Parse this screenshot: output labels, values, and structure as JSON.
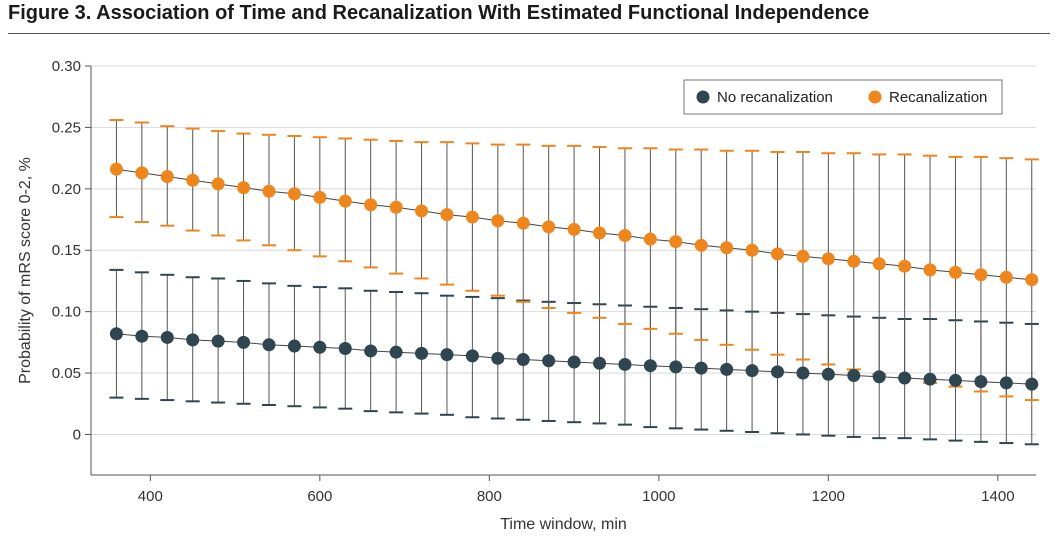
{
  "figure": {
    "title": "Figure 3. Association of Time and Recanalization With Estimated Functional Independence"
  },
  "chart_data": {
    "type": "scatter",
    "xlabel": "Time window, min",
    "ylabel": "Probability of mRS score 0-2, %",
    "xlim": [
      330,
      1445
    ],
    "ylim": [
      -0.033,
      0.3
    ],
    "x_ticks": [
      400,
      600,
      800,
      1000,
      1200,
      1400
    ],
    "x_tick_labels": [
      "400",
      "600",
      "800",
      "1000",
      "1200",
      "1400"
    ],
    "y_ticks": [
      0,
      0.05,
      0.1,
      0.15,
      0.2,
      0.25,
      0.3
    ],
    "y_tick_labels": [
      "0",
      "0.05",
      "0.10",
      "0.15",
      "0.20",
      "0.25",
      "0.30"
    ],
    "grid": "horizontal",
    "legend_position": "top-right",
    "x": [
      360,
      390,
      420,
      450,
      480,
      510,
      540,
      570,
      600,
      630,
      660,
      690,
      720,
      750,
      780,
      810,
      840,
      870,
      900,
      930,
      960,
      990,
      1020,
      1050,
      1080,
      1110,
      1140,
      1170,
      1200,
      1230,
      1260,
      1290,
      1320,
      1350,
      1380,
      1410,
      1440
    ],
    "series": [
      {
        "name": "No recanalization",
        "color": "#2f4550",
        "values": [
          0.082,
          0.08,
          0.079,
          0.077,
          0.076,
          0.075,
          0.073,
          0.072,
          0.071,
          0.07,
          0.068,
          0.067,
          0.066,
          0.065,
          0.064,
          0.062,
          0.061,
          0.06,
          0.059,
          0.058,
          0.057,
          0.056,
          0.055,
          0.054,
          0.053,
          0.052,
          0.051,
          0.05,
          0.049,
          0.048,
          0.047,
          0.046,
          0.045,
          0.044,
          0.043,
          0.042,
          0.041
        ],
        "lower": [
          0.03,
          0.029,
          0.028,
          0.027,
          0.026,
          0.025,
          0.024,
          0.023,
          0.022,
          0.021,
          0.019,
          0.018,
          0.017,
          0.016,
          0.014,
          0.013,
          0.012,
          0.011,
          0.01,
          0.009,
          0.008,
          0.006,
          0.005,
          0.004,
          0.003,
          0.002,
          0.001,
          0.0,
          -0.001,
          -0.002,
          -0.003,
          -0.003,
          -0.004,
          -0.005,
          -0.006,
          -0.007,
          -0.008
        ],
        "upper": [
          0.134,
          0.132,
          0.13,
          0.128,
          0.127,
          0.125,
          0.123,
          0.121,
          0.12,
          0.119,
          0.117,
          0.116,
          0.115,
          0.113,
          0.112,
          0.111,
          0.109,
          0.108,
          0.107,
          0.106,
          0.105,
          0.104,
          0.103,
          0.102,
          0.101,
          0.1,
          0.099,
          0.098,
          0.097,
          0.096,
          0.095,
          0.094,
          0.094,
          0.093,
          0.092,
          0.091,
          0.09
        ]
      },
      {
        "name": "Recanalization",
        "color": "#f08519",
        "values": [
          0.216,
          0.213,
          0.21,
          0.207,
          0.204,
          0.201,
          0.198,
          0.196,
          0.193,
          0.19,
          0.187,
          0.185,
          0.182,
          0.179,
          0.177,
          0.174,
          0.172,
          0.169,
          0.167,
          0.164,
          0.162,
          0.159,
          0.157,
          0.154,
          0.152,
          0.15,
          0.147,
          0.145,
          0.143,
          0.141,
          0.139,
          0.137,
          0.134,
          0.132,
          0.13,
          0.128,
          0.126
        ],
        "lower": [
          0.177,
          0.173,
          0.17,
          0.166,
          0.162,
          0.158,
          0.154,
          0.15,
          0.145,
          0.141,
          0.136,
          0.131,
          0.127,
          0.122,
          0.117,
          0.113,
          0.108,
          0.103,
          0.099,
          0.095,
          0.09,
          0.086,
          0.082,
          0.077,
          0.073,
          0.069,
          0.065,
          0.061,
          0.057,
          0.053,
          0.049,
          0.046,
          0.042,
          0.039,
          0.035,
          0.031,
          0.028
        ],
        "upper": [
          0.256,
          0.254,
          0.251,
          0.249,
          0.247,
          0.245,
          0.244,
          0.243,
          0.242,
          0.241,
          0.24,
          0.239,
          0.238,
          0.238,
          0.237,
          0.236,
          0.236,
          0.235,
          0.235,
          0.234,
          0.233,
          0.233,
          0.232,
          0.232,
          0.231,
          0.231,
          0.23,
          0.23,
          0.229,
          0.229,
          0.228,
          0.228,
          0.227,
          0.226,
          0.226,
          0.225,
          0.224
        ]
      }
    ]
  }
}
